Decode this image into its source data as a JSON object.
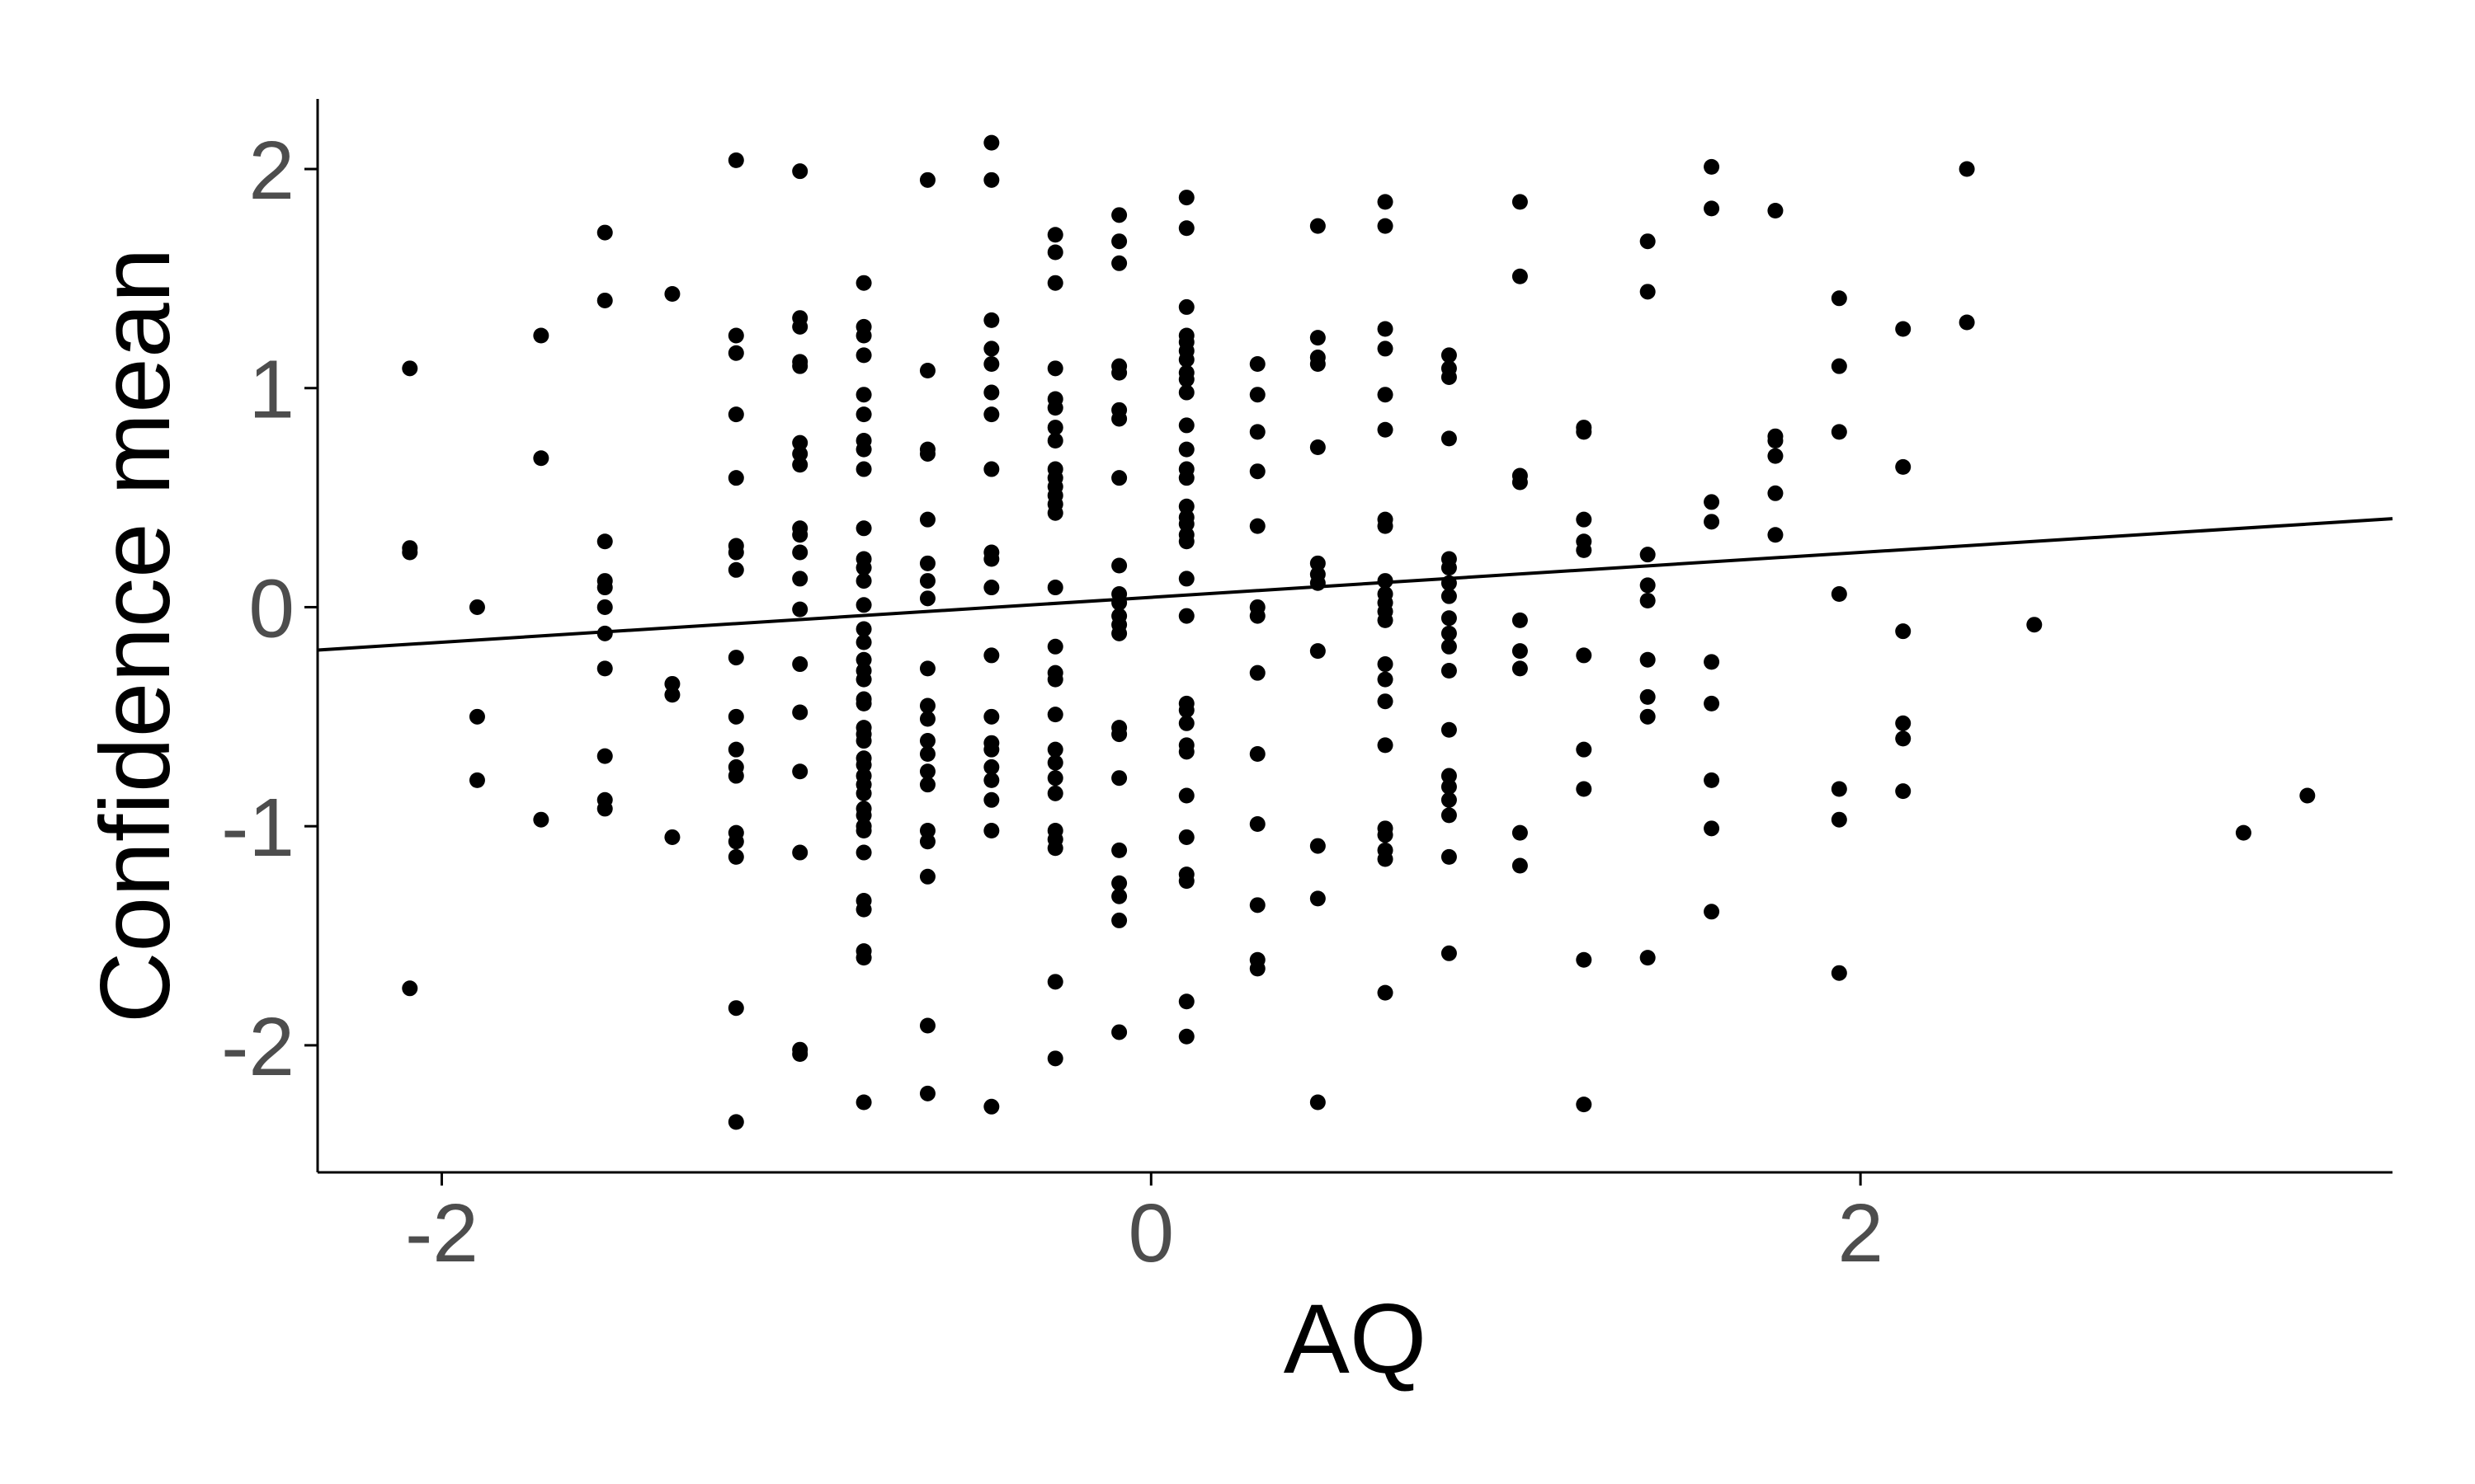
{
  "chart_data": {
    "type": "scatter",
    "title": "",
    "xlabel": "AQ",
    "ylabel": "Confidence mean",
    "xlim": [
      -2.35,
      3.5
    ],
    "ylim": [
      -2.58,
      2.32
    ],
    "x_ticks": [
      -2,
      0,
      2
    ],
    "y_ticks": [
      -2,
      -1,
      0,
      1,
      2
    ],
    "grid": false,
    "legend": "none",
    "point_color": "#000000",
    "trend_line": {
      "slope": 0.1025,
      "intercept": 0.045
    },
    "points": [
      [
        -2.09,
        1.09
      ],
      [
        -2.09,
        0.27
      ],
      [
        -2.09,
        0.25
      ],
      [
        -2.09,
        -1.74
      ],
      [
        -1.9,
        0.0
      ],
      [
        -1.9,
        -0.5
      ],
      [
        -1.9,
        -0.79
      ],
      [
        -1.72,
        1.24
      ],
      [
        -1.72,
        0.68
      ],
      [
        -1.72,
        -0.97
      ],
      [
        -1.54,
        1.71
      ],
      [
        -1.54,
        1.4
      ],
      [
        -1.54,
        0.3
      ],
      [
        -1.54,
        0.12
      ],
      [
        -1.54,
        0.09
      ],
      [
        -1.54,
        0.0
      ],
      [
        -1.54,
        -0.12
      ],
      [
        -1.54,
        -0.28
      ],
      [
        -1.54,
        -0.68
      ],
      [
        -1.54,
        -0.88
      ],
      [
        -1.54,
        -0.92
      ],
      [
        -1.35,
        1.43
      ],
      [
        -1.35,
        -0.35
      ],
      [
        -1.35,
        -0.4
      ],
      [
        -1.35,
        -1.05
      ],
      [
        -1.17,
        2.04
      ],
      [
        -1.17,
        1.24
      ],
      [
        -1.17,
        1.16
      ],
      [
        -1.17,
        0.88
      ],
      [
        -1.17,
        0.59
      ],
      [
        -1.17,
        0.28
      ],
      [
        -1.17,
        0.25
      ],
      [
        -1.17,
        0.17
      ],
      [
        -1.17,
        -0.23
      ],
      [
        -1.17,
        -0.5
      ],
      [
        -1.17,
        -0.65
      ],
      [
        -1.17,
        -0.73
      ],
      [
        -1.17,
        -0.77
      ],
      [
        -1.17,
        -1.03
      ],
      [
        -1.17,
        -1.07
      ],
      [
        -1.17,
        -1.14
      ],
      [
        -1.17,
        -1.83
      ],
      [
        -1.17,
        -2.35
      ],
      [
        -0.99,
        1.99
      ],
      [
        -0.99,
        1.32
      ],
      [
        -0.99,
        1.28
      ],
      [
        -0.99,
        1.12
      ],
      [
        -0.99,
        1.1
      ],
      [
        -0.99,
        0.75
      ],
      [
        -0.99,
        0.7
      ],
      [
        -0.99,
        0.65
      ],
      [
        -0.99,
        0.36
      ],
      [
        -0.99,
        0.33
      ],
      [
        -0.99,
        0.25
      ],
      [
        -0.99,
        0.13
      ],
      [
        -0.99,
        -0.01
      ],
      [
        -0.99,
        -0.26
      ],
      [
        -0.99,
        -0.48
      ],
      [
        -0.99,
        -0.75
      ],
      [
        -0.99,
        -1.12
      ],
      [
        -0.99,
        -2.02
      ],
      [
        -0.99,
        -2.04
      ],
      [
        -0.81,
        1.48
      ],
      [
        -0.81,
        1.28
      ],
      [
        -0.81,
        1.24
      ],
      [
        -0.81,
        1.15
      ],
      [
        -0.81,
        0.97
      ],
      [
        -0.81,
        0.88
      ],
      [
        -0.81,
        0.76
      ],
      [
        -0.81,
        0.72
      ],
      [
        -0.81,
        0.63
      ],
      [
        -0.81,
        0.36
      ],
      [
        -0.81,
        0.22
      ],
      [
        -0.81,
        0.18
      ],
      [
        -0.81,
        0.12
      ],
      [
        -0.81,
        0.01
      ],
      [
        -0.81,
        -0.1
      ],
      [
        -0.81,
        -0.16
      ],
      [
        -0.81,
        -0.24
      ],
      [
        -0.81,
        -0.29
      ],
      [
        -0.81,
        -0.33
      ],
      [
        -0.81,
        -0.42
      ],
      [
        -0.81,
        -0.44
      ],
      [
        -0.81,
        -0.55
      ],
      [
        -0.81,
        -0.58
      ],
      [
        -0.81,
        -0.61
      ],
      [
        -0.81,
        -0.69
      ],
      [
        -0.81,
        -0.72
      ],
      [
        -0.81,
        -0.77
      ],
      [
        -0.81,
        -0.81
      ],
      [
        -0.81,
        -0.85
      ],
      [
        -0.81,
        -0.92
      ],
      [
        -0.81,
        -0.95
      ],
      [
        -0.81,
        -1.0
      ],
      [
        -0.81,
        -1.02
      ],
      [
        -0.81,
        -1.12
      ],
      [
        -0.81,
        -1.34
      ],
      [
        -0.81,
        -1.38
      ],
      [
        -0.81,
        -1.57
      ],
      [
        -0.81,
        -1.6
      ],
      [
        -0.81,
        -2.26
      ],
      [
        -0.63,
        1.95
      ],
      [
        -0.63,
        1.08
      ],
      [
        -0.63,
        0.72
      ],
      [
        -0.63,
        0.7
      ],
      [
        -0.63,
        0.4
      ],
      [
        -0.63,
        0.2
      ],
      [
        -0.63,
        0.12
      ],
      [
        -0.63,
        0.04
      ],
      [
        -0.63,
        -0.28
      ],
      [
        -0.63,
        -0.45
      ],
      [
        -0.63,
        -0.51
      ],
      [
        -0.63,
        -0.61
      ],
      [
        -0.63,
        -0.67
      ],
      [
        -0.63,
        -0.75
      ],
      [
        -0.63,
        -0.81
      ],
      [
        -0.63,
        -1.02
      ],
      [
        -0.63,
        -1.07
      ],
      [
        -0.63,
        -1.23
      ],
      [
        -0.63,
        -1.91
      ],
      [
        -0.63,
        -2.22
      ],
      [
        -0.45,
        2.12
      ],
      [
        -0.45,
        1.95
      ],
      [
        -0.45,
        1.31
      ],
      [
        -0.45,
        1.18
      ],
      [
        -0.45,
        1.11
      ],
      [
        -0.45,
        0.98
      ],
      [
        -0.45,
        0.88
      ],
      [
        -0.45,
        0.63
      ],
      [
        -0.45,
        0.25
      ],
      [
        -0.45,
        0.22
      ],
      [
        -0.45,
        0.09
      ],
      [
        -0.45,
        -0.22
      ],
      [
        -0.45,
        -0.5
      ],
      [
        -0.45,
        -0.62
      ],
      [
        -0.45,
        -0.65
      ],
      [
        -0.45,
        -0.73
      ],
      [
        -0.45,
        -0.79
      ],
      [
        -0.45,
        -0.88
      ],
      [
        -0.45,
        -1.02
      ],
      [
        -0.45,
        -2.28
      ],
      [
        -0.27,
        1.7
      ],
      [
        -0.27,
        1.62
      ],
      [
        -0.27,
        1.48
      ],
      [
        -0.27,
        1.09
      ],
      [
        -0.27,
        0.95
      ],
      [
        -0.27,
        0.91
      ],
      [
        -0.27,
        0.82
      ],
      [
        -0.27,
        0.76
      ],
      [
        -0.27,
        0.63
      ],
      [
        -0.27,
        0.59
      ],
      [
        -0.27,
        0.55
      ],
      [
        -0.27,
        0.51
      ],
      [
        -0.27,
        0.47
      ],
      [
        -0.27,
        0.43
      ],
      [
        -0.27,
        0.09
      ],
      [
        -0.27,
        -0.18
      ],
      [
        -0.27,
        -0.3
      ],
      [
        -0.27,
        -0.33
      ],
      [
        -0.27,
        -0.49
      ],
      [
        -0.27,
        -0.65
      ],
      [
        -0.27,
        -0.71
      ],
      [
        -0.27,
        -0.78
      ],
      [
        -0.27,
        -0.85
      ],
      [
        -0.27,
        -1.02
      ],
      [
        -0.27,
        -1.06
      ],
      [
        -0.27,
        -1.1
      ],
      [
        -0.27,
        -1.71
      ],
      [
        -0.27,
        -2.06
      ],
      [
        -0.09,
        1.79
      ],
      [
        -0.09,
        1.67
      ],
      [
        -0.09,
        1.57
      ],
      [
        -0.09,
        1.1
      ],
      [
        -0.09,
        1.07
      ],
      [
        -0.09,
        0.9
      ],
      [
        -0.09,
        0.86
      ],
      [
        -0.09,
        0.59
      ],
      [
        -0.09,
        0.19
      ],
      [
        -0.09,
        0.06
      ],
      [
        -0.09,
        0.02
      ],
      [
        -0.09,
        -0.04
      ],
      [
        -0.09,
        -0.08
      ],
      [
        -0.09,
        -0.12
      ],
      [
        -0.09,
        -0.55
      ],
      [
        -0.09,
        -0.58
      ],
      [
        -0.09,
        -0.78
      ],
      [
        -0.09,
        -1.11
      ],
      [
        -0.09,
        -1.26
      ],
      [
        -0.09,
        -1.32
      ],
      [
        -0.09,
        -1.43
      ],
      [
        -0.09,
        -1.94
      ],
      [
        0.1,
        1.87
      ],
      [
        0.1,
        1.73
      ],
      [
        0.1,
        1.37
      ],
      [
        0.1,
        1.24
      ],
      [
        0.1,
        1.21
      ],
      [
        0.1,
        1.17
      ],
      [
        0.1,
        1.13
      ],
      [
        0.1,
        1.07
      ],
      [
        0.1,
        1.04
      ],
      [
        0.1,
        0.98
      ],
      [
        0.1,
        0.83
      ],
      [
        0.1,
        0.72
      ],
      [
        0.1,
        0.63
      ],
      [
        0.1,
        0.59
      ],
      [
        0.1,
        0.46
      ],
      [
        0.1,
        0.41
      ],
      [
        0.1,
        0.38
      ],
      [
        0.1,
        0.33
      ],
      [
        0.1,
        0.3
      ],
      [
        0.1,
        0.13
      ],
      [
        0.1,
        -0.04
      ],
      [
        0.1,
        -0.44
      ],
      [
        0.1,
        -0.47
      ],
      [
        0.1,
        -0.53
      ],
      [
        0.1,
        -0.63
      ],
      [
        0.1,
        -0.66
      ],
      [
        0.1,
        -0.86
      ],
      [
        0.1,
        -1.05
      ],
      [
        0.1,
        -1.22
      ],
      [
        0.1,
        -1.25
      ],
      [
        0.1,
        -1.8
      ],
      [
        0.1,
        -1.96
      ],
      [
        0.3,
        1.11
      ],
      [
        0.3,
        0.97
      ],
      [
        0.3,
        0.8
      ],
      [
        0.3,
        0.62
      ],
      [
        0.3,
        0.37
      ],
      [
        0.3,
        0.0
      ],
      [
        0.3,
        -0.04
      ],
      [
        0.3,
        -0.3
      ],
      [
        0.3,
        -0.67
      ],
      [
        0.3,
        -0.99
      ],
      [
        0.3,
        -1.36
      ],
      [
        0.3,
        -1.61
      ],
      [
        0.3,
        -1.65
      ],
      [
        0.47,
        1.74
      ],
      [
        0.47,
        1.23
      ],
      [
        0.47,
        1.14
      ],
      [
        0.47,
        1.11
      ],
      [
        0.47,
        0.73
      ],
      [
        0.47,
        0.2
      ],
      [
        0.47,
        0.15
      ],
      [
        0.47,
        0.11
      ],
      [
        0.47,
        -0.2
      ],
      [
        0.47,
        -1.09
      ],
      [
        0.47,
        -1.33
      ],
      [
        0.47,
        -2.26
      ],
      [
        0.66,
        1.85
      ],
      [
        0.66,
        1.74
      ],
      [
        0.66,
        1.27
      ],
      [
        0.66,
        1.18
      ],
      [
        0.66,
        0.97
      ],
      [
        0.66,
        0.81
      ],
      [
        0.66,
        0.4
      ],
      [
        0.66,
        0.37
      ],
      [
        0.66,
        0.12
      ],
      [
        0.66,
        0.06
      ],
      [
        0.66,
        0.02
      ],
      [
        0.66,
        -0.02
      ],
      [
        0.66,
        -0.06
      ],
      [
        0.66,
        -0.26
      ],
      [
        0.66,
        -0.33
      ],
      [
        0.66,
        -0.43
      ],
      [
        0.66,
        -0.63
      ],
      [
        0.66,
        -1.01
      ],
      [
        0.66,
        -1.04
      ],
      [
        0.66,
        -1.11
      ],
      [
        0.66,
        -1.15
      ],
      [
        0.66,
        -1.76
      ],
      [
        0.84,
        1.15
      ],
      [
        0.84,
        1.09
      ],
      [
        0.84,
        1.05
      ],
      [
        0.84,
        0.77
      ],
      [
        0.84,
        0.22
      ],
      [
        0.84,
        0.18
      ],
      [
        0.84,
        0.11
      ],
      [
        0.84,
        0.05
      ],
      [
        0.84,
        -0.05
      ],
      [
        0.84,
        -0.12
      ],
      [
        0.84,
        -0.18
      ],
      [
        0.84,
        -0.29
      ],
      [
        0.84,
        -0.56
      ],
      [
        0.84,
        -0.77
      ],
      [
        0.84,
        -0.82
      ],
      [
        0.84,
        -0.88
      ],
      [
        0.84,
        -0.95
      ],
      [
        0.84,
        -1.14
      ],
      [
        0.84,
        -1.58
      ],
      [
        1.04,
        1.85
      ],
      [
        1.04,
        1.51
      ],
      [
        1.04,
        0.6
      ],
      [
        1.04,
        0.57
      ],
      [
        1.04,
        -0.06
      ],
      [
        1.04,
        -0.2
      ],
      [
        1.04,
        -0.28
      ],
      [
        1.04,
        -1.03
      ],
      [
        1.04,
        -1.18
      ],
      [
        1.22,
        0.82
      ],
      [
        1.22,
        0.8
      ],
      [
        1.22,
        0.4
      ],
      [
        1.22,
        0.3
      ],
      [
        1.22,
        0.26
      ],
      [
        1.22,
        -0.22
      ],
      [
        1.22,
        -0.65
      ],
      [
        1.22,
        -0.83
      ],
      [
        1.22,
        -1.61
      ],
      [
        1.22,
        -2.27
      ],
      [
        1.4,
        1.67
      ],
      [
        1.4,
        1.44
      ],
      [
        1.4,
        0.24
      ],
      [
        1.4,
        0.1
      ],
      [
        1.4,
        0.03
      ],
      [
        1.4,
        -0.24
      ],
      [
        1.4,
        -0.41
      ],
      [
        1.4,
        -0.5
      ],
      [
        1.4,
        -1.6
      ],
      [
        1.58,
        2.01
      ],
      [
        1.58,
        1.82
      ],
      [
        1.58,
        0.48
      ],
      [
        1.58,
        0.39
      ],
      [
        1.58,
        -0.25
      ],
      [
        1.58,
        -0.44
      ],
      [
        1.58,
        -0.79
      ],
      [
        1.58,
        -1.01
      ],
      [
        1.58,
        -1.39
      ],
      [
        1.76,
        1.81
      ],
      [
        1.76,
        0.78
      ],
      [
        1.76,
        0.76
      ],
      [
        1.76,
        0.69
      ],
      [
        1.76,
        0.52
      ],
      [
        1.76,
        0.33
      ],
      [
        1.94,
        1.41
      ],
      [
        1.94,
        1.1
      ],
      [
        1.94,
        0.8
      ],
      [
        1.94,
        0.06
      ],
      [
        1.94,
        -0.83
      ],
      [
        1.94,
        -0.97
      ],
      [
        1.94,
        -1.67
      ],
      [
        2.12,
        1.27
      ],
      [
        2.12,
        0.64
      ],
      [
        2.12,
        -0.11
      ],
      [
        2.12,
        -0.53
      ],
      [
        2.12,
        -0.6
      ],
      [
        2.12,
        -0.84
      ],
      [
        2.3,
        2.0
      ],
      [
        2.3,
        1.3
      ],
      [
        2.49,
        -0.08
      ],
      [
        3.08,
        -1.03
      ],
      [
        3.26,
        -0.86
      ]
    ]
  }
}
